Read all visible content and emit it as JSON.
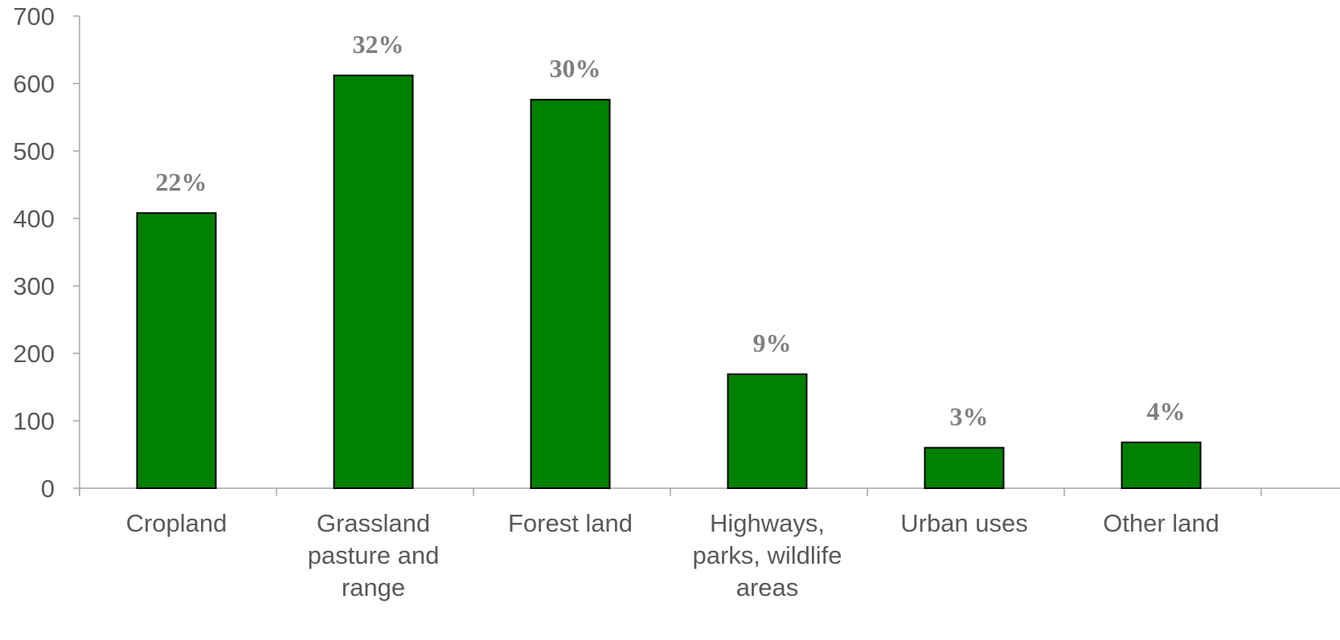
{
  "chart_data": {
    "type": "bar",
    "categories": [
      [
        "Cropland"
      ],
      [
        "Grassland",
        "pasture and",
        "range"
      ],
      [
        "Forest land"
      ],
      [
        "Highways,",
        "parks, wildlife",
        "areas"
      ],
      [
        "Urban uses"
      ],
      [
        "Other land"
      ]
    ],
    "values": [
      408,
      612,
      576,
      169,
      60,
      68
    ],
    "data_labels": [
      "22%",
      "32%",
      "30%",
      "9%",
      "3%",
      "4%"
    ],
    "ylim": [
      0,
      700
    ],
    "yticks": [
      "0",
      "100",
      "200",
      "300",
      "400",
      "500",
      "600",
      "700"
    ],
    "title": "",
    "xlabel": "",
    "ylabel": "",
    "grid": false,
    "legend": "none",
    "colors": {
      "bar": "#008000",
      "bar_outline": "#000000",
      "axis": "#a6a6a6",
      "text": "#595959",
      "data_label": "#7f7f7f"
    }
  }
}
